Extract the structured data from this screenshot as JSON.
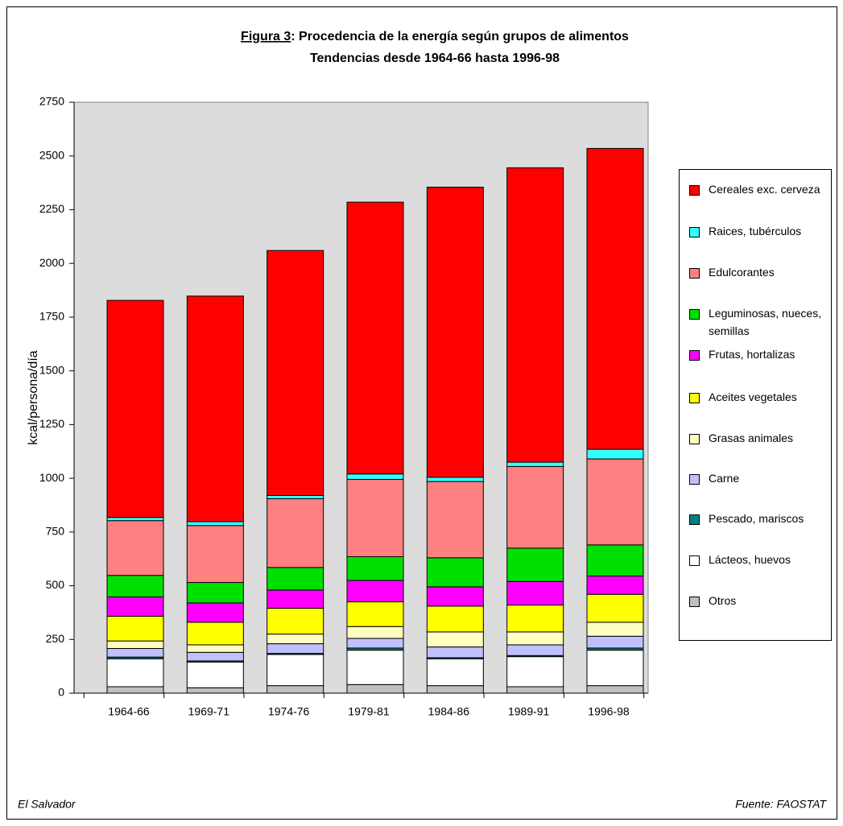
{
  "chart_data": {
    "type": "stacked_bar",
    "title_label": "Figura 3",
    "title": ": Procedencia de la energía según grupos de alimentos",
    "subtitle": "Tendencias desde 1964-66 hasta 1996-98",
    "y_label": "kcal/persona/día",
    "note_left": "El Salvador",
    "note_right": "Fuente: FAOSTAT",
    "categories": [
      "1964-66",
      "1969-71",
      "1974-76",
      "1979-81",
      "1984-86",
      "1989-91",
      "1996-98"
    ],
    "series": [
      {
        "name": "Otros",
        "color": "#c0c0c0",
        "values": [
          30,
          25,
          35,
          40,
          35,
          30,
          35
        ]
      },
      {
        "name": "Lácteos, huevos",
        "color": "#ffffff",
        "values": [
          130,
          120,
          145,
          160,
          125,
          140,
          165
        ]
      },
      {
        "name": "Pescado, mariscos",
        "color": "#008080",
        "values": [
          8,
          5,
          5,
          10,
          5,
          5,
          10
        ]
      },
      {
        "name": "Carne",
        "color": "#c0c0ff",
        "values": [
          40,
          40,
          45,
          45,
          50,
          50,
          55
        ]
      },
      {
        "name": "Grasas animales",
        "color": "#ffffc0",
        "values": [
          35,
          35,
          45,
          55,
          70,
          60,
          65
        ]
      },
      {
        "name": "Aceites vegetales",
        "color": "#ffff00",
        "values": [
          115,
          105,
          120,
          115,
          120,
          125,
          130
        ]
      },
      {
        "name": "Frutas, hortalizas",
        "color": "#ff00ff",
        "values": [
          90,
          90,
          85,
          100,
          90,
          110,
          85
        ]
      },
      {
        "name": "Leguminosas, nueces, semillas",
        "color": "#00e000",
        "values": [
          100,
          95,
          105,
          110,
          135,
          155,
          145
        ]
      },
      {
        "name": "Edulcorantes",
        "color": "#ff8080",
        "values": [
          255,
          265,
          320,
          360,
          355,
          380,
          400
        ]
      },
      {
        "name": "Raices, tubérculos",
        "color": "#33ffff",
        "values": [
          15,
          18,
          15,
          25,
          20,
          20,
          45
        ]
      },
      {
        "name": "Cereales exc. cerveza",
        "color": "#ff0000",
        "values": [
          1010,
          1050,
          1140,
          1265,
          1350,
          1370,
          1400
        ]
      }
    ],
    "ylim": [
      0,
      2750
    ],
    "yticks": [
      0,
      250,
      500,
      750,
      1000,
      1250,
      1500,
      1750,
      2000,
      2250,
      2500,
      2750
    ],
    "grid": false,
    "legend": "right"
  }
}
